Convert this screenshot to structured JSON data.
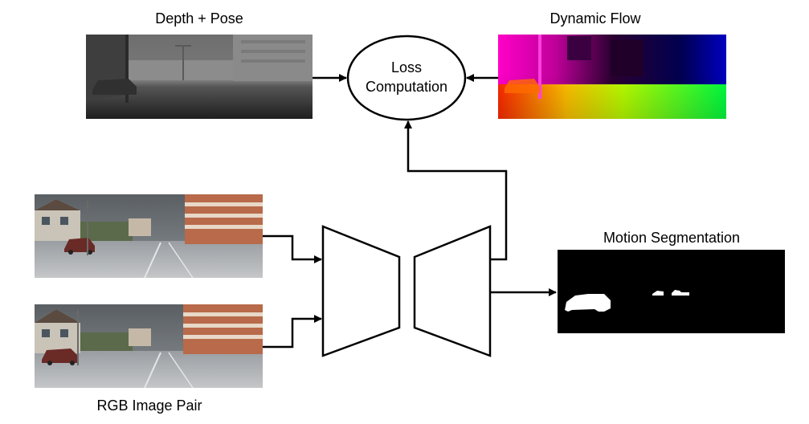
{
  "labels": {
    "depth_pose": "Depth + Pose",
    "dynamic_flow": "Dynamic Flow",
    "loss_line1": "Loss",
    "loss_line2": "Computation",
    "motion_segmentation": "Motion Segmentation",
    "rgb_image_pair": "RGB Image Pair"
  },
  "colors": {
    "stroke": "#000000",
    "background": "#ffffff",
    "mask_background": "#000000",
    "mask_foreground": "#ffffff"
  }
}
